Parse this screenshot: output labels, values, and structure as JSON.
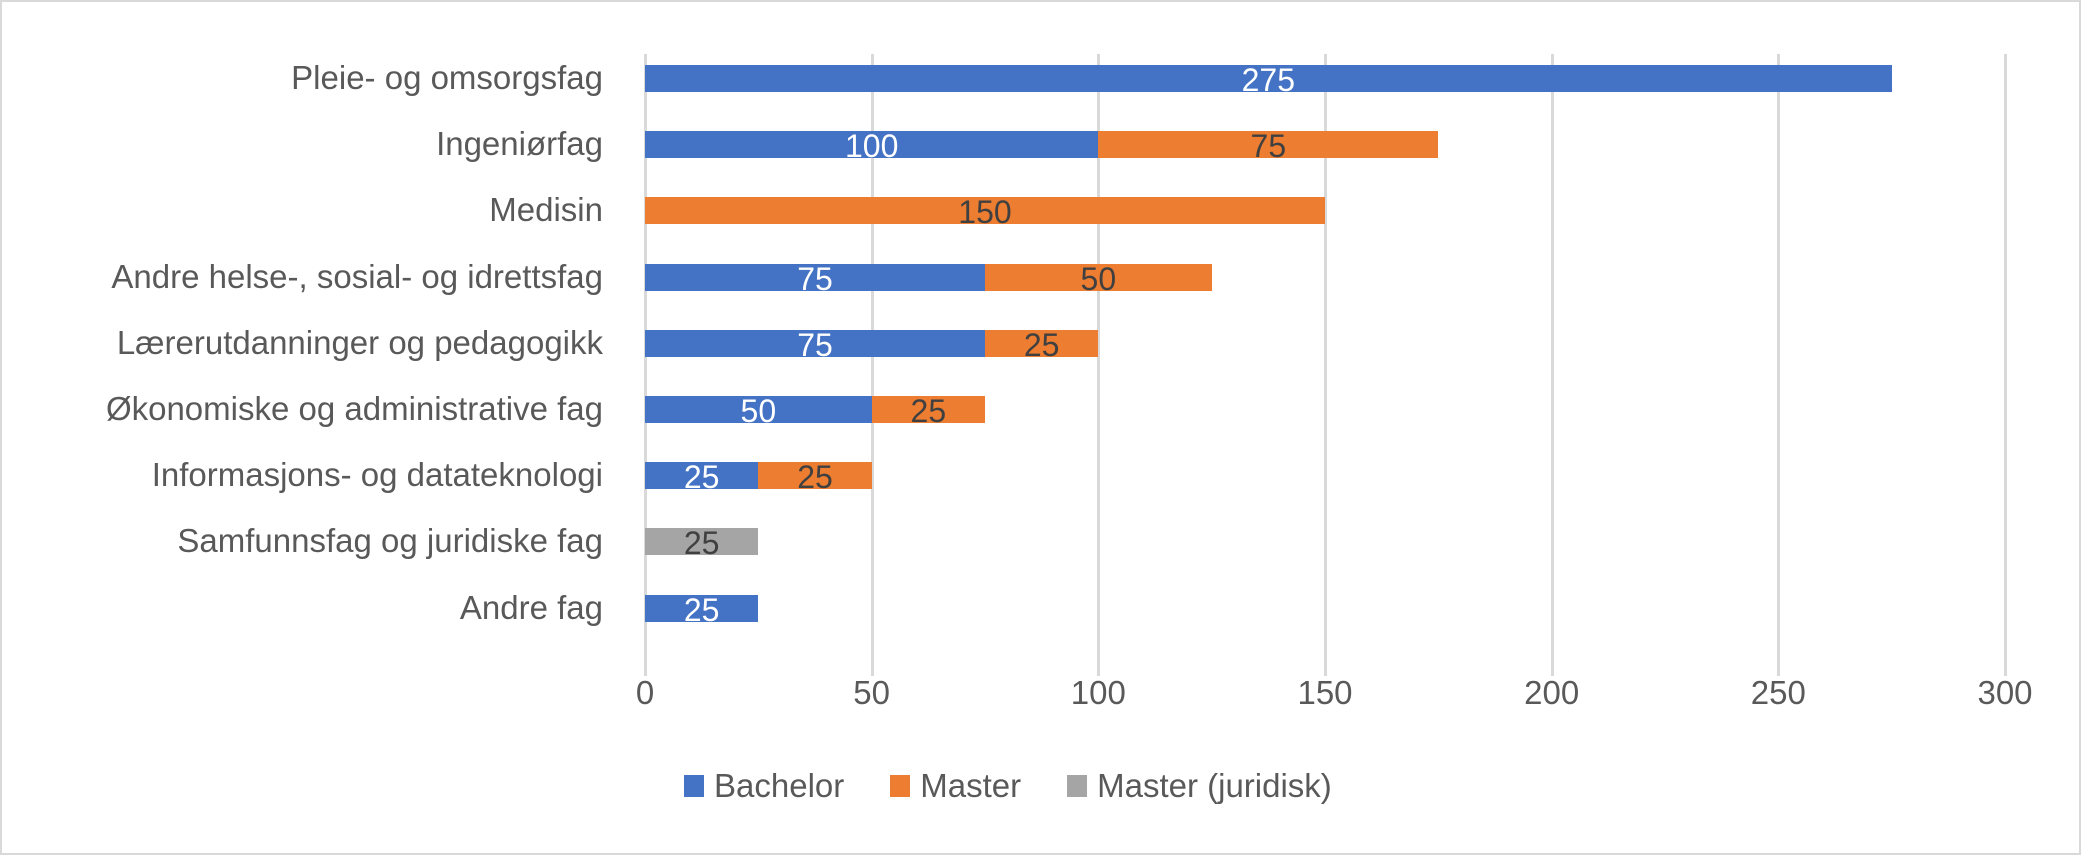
{
  "chart_data": {
    "type": "bar",
    "orientation": "horizontal",
    "stacked": true,
    "title": "",
    "xlabel": "",
    "ylabel": "",
    "xlim": [
      0,
      300
    ],
    "x_ticks": [
      "0",
      "50",
      "100",
      "150",
      "200",
      "250",
      "300"
    ],
    "grid": true,
    "legend_position": "bottom",
    "categories": [
      "Pleie- og omsorgsfag",
      "Ingeniørfag",
      "Medisin",
      "Andre helse-, sosial- og idrettsfag",
      "Lærerutdanninger og pedagogikk",
      "Økonomiske og administrative fag",
      "Informasjons- og datateknologi",
      "Samfunnsfag og juridiske fag",
      "Andre fag"
    ],
    "series": [
      {
        "name": "Bachelor",
        "color": "#4472C4",
        "values": [
          275,
          100,
          0,
          75,
          75,
          50,
          25,
          0,
          25
        ]
      },
      {
        "name": "Master",
        "color": "#ED7D31",
        "values": [
          0,
          75,
          150,
          50,
          25,
          25,
          25,
          0,
          0
        ]
      },
      {
        "name": "Master (juridisk)",
        "color": "#A5A5A5",
        "values": [
          0,
          0,
          0,
          0,
          0,
          0,
          0,
          25,
          0
        ]
      }
    ]
  },
  "rows": [
    {
      "label": "Pleie- og omsorgsfag",
      "segs": [
        {
          "start": 0,
          "value": 275,
          "text": "275",
          "color": "#4472C4",
          "tone": "light"
        }
      ]
    },
    {
      "label": "Ingeniørfag",
      "segs": [
        {
          "start": 0,
          "value": 100,
          "text": "100",
          "color": "#4472C4",
          "tone": "light"
        },
        {
          "start": 100,
          "value": 75,
          "text": "75",
          "color": "#ED7D31",
          "tone": "dark"
        }
      ]
    },
    {
      "label": "Medisin",
      "segs": [
        {
          "start": 0,
          "value": 150,
          "text": "150",
          "color": "#ED7D31",
          "tone": "dark"
        }
      ]
    },
    {
      "label": "Andre helse-, sosial- og idrettsfag",
      "segs": [
        {
          "start": 0,
          "value": 75,
          "text": "75",
          "color": "#4472C4",
          "tone": "light"
        },
        {
          "start": 75,
          "value": 50,
          "text": "50",
          "color": "#ED7D31",
          "tone": "dark"
        }
      ]
    },
    {
      "label": "Lærerutdanninger og pedagogikk",
      "segs": [
        {
          "start": 0,
          "value": 75,
          "text": "75",
          "color": "#4472C4",
          "tone": "light"
        },
        {
          "start": 75,
          "value": 25,
          "text": "25",
          "color": "#ED7D31",
          "tone": "dark"
        }
      ]
    },
    {
      "label": "Økonomiske og administrative fag",
      "segs": [
        {
          "start": 0,
          "value": 50,
          "text": "50",
          "color": "#4472C4",
          "tone": "light"
        },
        {
          "start": 50,
          "value": 25,
          "text": "25",
          "color": "#ED7D31",
          "tone": "dark"
        }
      ]
    },
    {
      "label": "Informasjons- og datateknologi",
      "segs": [
        {
          "start": 0,
          "value": 25,
          "text": "25",
          "color": "#4472C4",
          "tone": "light"
        },
        {
          "start": 25,
          "value": 25,
          "text": "25",
          "color": "#ED7D31",
          "tone": "dark"
        }
      ]
    },
    {
      "label": "Samfunnsfag og juridiske fag",
      "segs": [
        {
          "start": 0,
          "value": 25,
          "text": "25",
          "color": "#A5A5A5",
          "tone": "dark"
        }
      ]
    },
    {
      "label": "Andre fag",
      "segs": [
        {
          "start": 0,
          "value": 25,
          "text": "25",
          "color": "#4472C4",
          "tone": "light"
        }
      ]
    }
  ],
  "axis": {
    "ticks": [
      "0",
      "50",
      "100",
      "150",
      "200",
      "250",
      "300"
    ],
    "max": 300
  },
  "legend": [
    {
      "label": "Bachelor",
      "color": "#4472C4"
    },
    {
      "label": "Master",
      "color": "#ED7D31"
    },
    {
      "label": "Master (juridisk)",
      "color": "#A5A5A5"
    }
  ]
}
